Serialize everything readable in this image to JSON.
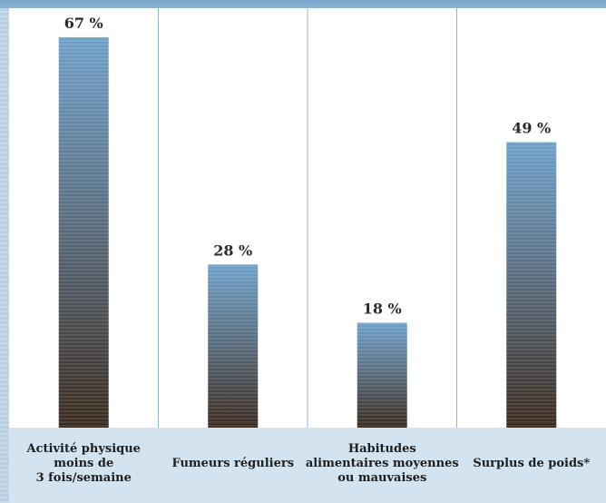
{
  "chart_data": {
    "type": "bar",
    "categories": [
      [
        "Activité physique",
        "moins de",
        "3 fois/semaine"
      ],
      [
        "Fumeurs réguliers"
      ],
      [
        "Habitudes",
        "alimentaires moyennes",
        "ou mauvaises"
      ],
      [
        "Surplus de poids*"
      ]
    ],
    "values": [
      67,
      28,
      18,
      49
    ],
    "value_labels": [
      "67 %",
      "28 %",
      "18 %",
      "49 %"
    ],
    "ylim": [
      0,
      72
    ],
    "grid": false,
    "colors": {
      "bar_top": "#6fa0c9",
      "bar_bottom": "#3a2a1e",
      "divider": "#8fb3d4",
      "background": "#ffffff",
      "label_band": "#d3e3ef"
    }
  }
}
